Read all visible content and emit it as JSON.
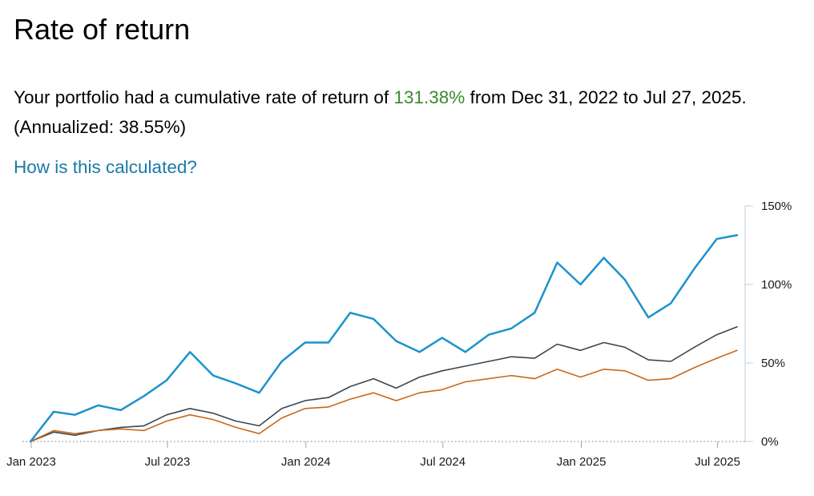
{
  "page": {
    "title": "Rate of return",
    "summary": {
      "prefix": "Your portfolio had a cumulative rate of return of",
      "cumulative_return": "131.38%",
      "middle": "from Dec 31, 2022 to Jul 27, 2025. (Annualized:",
      "annualized_return": "38.55%",
      "suffix": ")"
    },
    "help_link": "How is this calculated?"
  },
  "colors": {
    "portfolio_line": "#1b93cc",
    "benchmark_dark": "#3c4652",
    "benchmark_orange": "#c8691c",
    "positive_text": "#3a8a2e",
    "link": "#1a7aa8",
    "axis": "#bcd0e0"
  },
  "chart_data": {
    "type": "line",
    "x_tick_labels": [
      "Jan 2023",
      "Jul 2023",
      "Jan 2024",
      "Jul 2024",
      "Jan 2025",
      "Jul 2025"
    ],
    "x_tick_dates": [
      "2023-01-01",
      "2023-07-01",
      "2024-01-01",
      "2024-07-01",
      "2025-01-01",
      "2025-07-01"
    ],
    "x_range": [
      "2022-12-31",
      "2025-07-27"
    ],
    "y_tick_labels": [
      "0%",
      "50%",
      "100%",
      "150%"
    ],
    "y_ticks": [
      0,
      50,
      100,
      150
    ],
    "ylim": [
      0,
      150
    ],
    "y_axis_side": "right",
    "zero_line": "dotted",
    "x": [
      "2022-12-31",
      "2023-01-31",
      "2023-02-28",
      "2023-03-31",
      "2023-04-30",
      "2023-05-31",
      "2023-06-30",
      "2023-07-31",
      "2023-08-31",
      "2023-09-30",
      "2023-10-31",
      "2023-11-30",
      "2023-12-31",
      "2024-01-31",
      "2024-02-29",
      "2024-03-31",
      "2024-04-30",
      "2024-05-31",
      "2024-06-30",
      "2024-07-31",
      "2024-08-31",
      "2024-09-30",
      "2024-10-31",
      "2024-11-30",
      "2024-12-31",
      "2025-01-31",
      "2025-02-28",
      "2025-03-31",
      "2025-04-30",
      "2025-05-31",
      "2025-06-30",
      "2025-07-27"
    ],
    "series": [
      {
        "color": "#1b93cc",
        "width": 2.5,
        "values": [
          0,
          19,
          17,
          23,
          20,
          29,
          39,
          57,
          42,
          37,
          31,
          51,
          63,
          63,
          82,
          78,
          64,
          57,
          66,
          57,
          68,
          72,
          82,
          114,
          100,
          117,
          103,
          79,
          88,
          110,
          129,
          131.38
        ]
      },
      {
        "color": "#3c4652",
        "width": 1.6,
        "values": [
          0,
          6,
          4,
          7,
          9,
          10,
          17,
          21,
          18,
          13,
          10,
          21,
          26,
          28,
          35,
          40,
          34,
          41,
          45,
          48,
          51,
          54,
          53,
          62,
          58,
          63,
          60,
          52,
          51,
          60,
          68,
          73
        ]
      },
      {
        "color": "#c8691c",
        "width": 1.6,
        "values": [
          0,
          7,
          5,
          7,
          8,
          7,
          13,
          17,
          14,
          9,
          5,
          15,
          21,
          22,
          27,
          31,
          26,
          31,
          33,
          38,
          40,
          42,
          40,
          46,
          41,
          46,
          45,
          39,
          40,
          47,
          53,
          58
        ]
      }
    ]
  }
}
